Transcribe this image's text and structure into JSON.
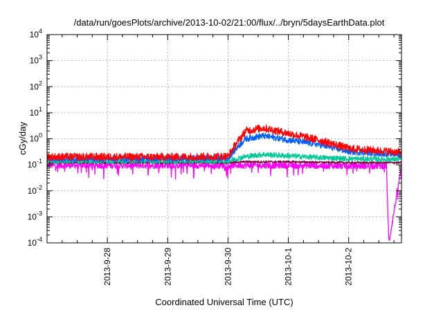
{
  "chart_data": {
    "type": "line",
    "title": "/data/run/goesPlots/archive/2013-10-02/21:00/flux/../bryn/5daysEarthData.plot",
    "xlabel": "Coordinated Universal Time (UTC)",
    "ylabel": "cGy/day",
    "yscale": "log",
    "ylim": [
      0.0001,
      10000
    ],
    "xlim": [
      "2013-09-27 00:00",
      "2013-10-02 21:00"
    ],
    "grid": true,
    "ytick_labels": [
      {
        "base": "10",
        "exp": "-4",
        "value": 0.0001
      },
      {
        "base": "10",
        "exp": "-3",
        "value": 0.001
      },
      {
        "base": "10",
        "exp": "-2",
        "value": 0.01
      },
      {
        "base": "10",
        "exp": "-1",
        "value": 0.1
      },
      {
        "base": "10",
        "exp": "0",
        "value": 1
      },
      {
        "base": "10",
        "exp": "1",
        "value": 10
      },
      {
        "base": "10",
        "exp": "2",
        "value": 100
      },
      {
        "base": "10",
        "exp": "3",
        "value": 1000
      },
      {
        "base": "10",
        "exp": "4",
        "value": 10000
      }
    ],
    "xtick_labels": [
      {
        "label": "2013-9-28",
        "x": "2013-09-28 00:00"
      },
      {
        "label": "2013-9-29",
        "x": "2013-09-29 00:00"
      },
      {
        "label": "2013-9-30",
        "x": "2013-09-30 00:00"
      },
      {
        "label": "2013-10-1",
        "x": "2013-10-01 00:00"
      },
      {
        "label": "2013-10-2",
        "x": "2013-10-02 00:00"
      }
    ],
    "series": [
      {
        "color": "#ff00ff",
        "noise": 0.12,
        "dip_prob": 0.05,
        "x": [
          "2013-09-27 00:00",
          "2013-09-28 00:00",
          "2013-09-29 00:00",
          "2013-09-30 00:00",
          "2013-10-01 00:00",
          "2013-10-02 00:00",
          "2013-10-02 15:00",
          "2013-10-02 16:00",
          "2013-10-02 21:00"
        ],
        "y": [
          0.095,
          0.095,
          0.095,
          0.095,
          0.095,
          0.09,
          0.09,
          0.0001,
          0.09
        ]
      },
      {
        "color": "#800040",
        "noise": 0.04,
        "dip_prob": 0.0,
        "x": [
          "2013-09-27 00:00",
          "2013-09-29 00:00",
          "2013-09-30 00:00",
          "2013-09-30 06:00",
          "2013-10-01 00:00",
          "2013-10-02 00:00",
          "2013-10-02 21:00"
        ],
        "y": [
          0.12,
          0.12,
          0.12,
          0.13,
          0.13,
          0.12,
          0.12
        ]
      },
      {
        "color": "#00c896",
        "noise": 0.1,
        "dip_prob": 0.0,
        "x": [
          "2013-09-27 00:00",
          "2013-09-29 00:00",
          "2013-09-30 00:00",
          "2013-09-30 06:00",
          "2013-09-30 14:00",
          "2013-10-01 00:00",
          "2013-10-01 12:00",
          "2013-10-02 00:00",
          "2013-10-02 21:00"
        ],
        "y": [
          0.14,
          0.14,
          0.14,
          0.2,
          0.25,
          0.22,
          0.19,
          0.17,
          0.16
        ]
      },
      {
        "color": "#0060ff",
        "noise": 0.12,
        "dip_prob": 0.0,
        "x": [
          "2013-09-27 00:00",
          "2013-09-29 00:00",
          "2013-09-30 00:00",
          "2013-09-30 03:00",
          "2013-09-30 07:00",
          "2013-09-30 14:00",
          "2013-10-01 00:00",
          "2013-10-01 12:00",
          "2013-10-01 20:00",
          "2013-10-02 00:00",
          "2013-10-02 21:00"
        ],
        "y": [
          0.17,
          0.17,
          0.18,
          0.4,
          1.0,
          1.3,
          0.9,
          0.6,
          0.4,
          0.32,
          0.25
        ]
      },
      {
        "color": "#ff0000",
        "noise": 0.15,
        "dip_prob": 0.0,
        "x": [
          "2013-09-27 00:00",
          "2013-09-29 00:00",
          "2013-09-30 00:00",
          "2013-09-30 03:00",
          "2013-09-30 07:00",
          "2013-09-30 14:00",
          "2013-10-01 00:00",
          "2013-10-01 12:00",
          "2013-10-01 20:00",
          "2013-10-02 00:00",
          "2013-10-02 21:00"
        ],
        "y": [
          0.2,
          0.2,
          0.21,
          0.6,
          2.0,
          2.6,
          1.6,
          0.9,
          0.55,
          0.42,
          0.3
        ]
      }
    ]
  }
}
